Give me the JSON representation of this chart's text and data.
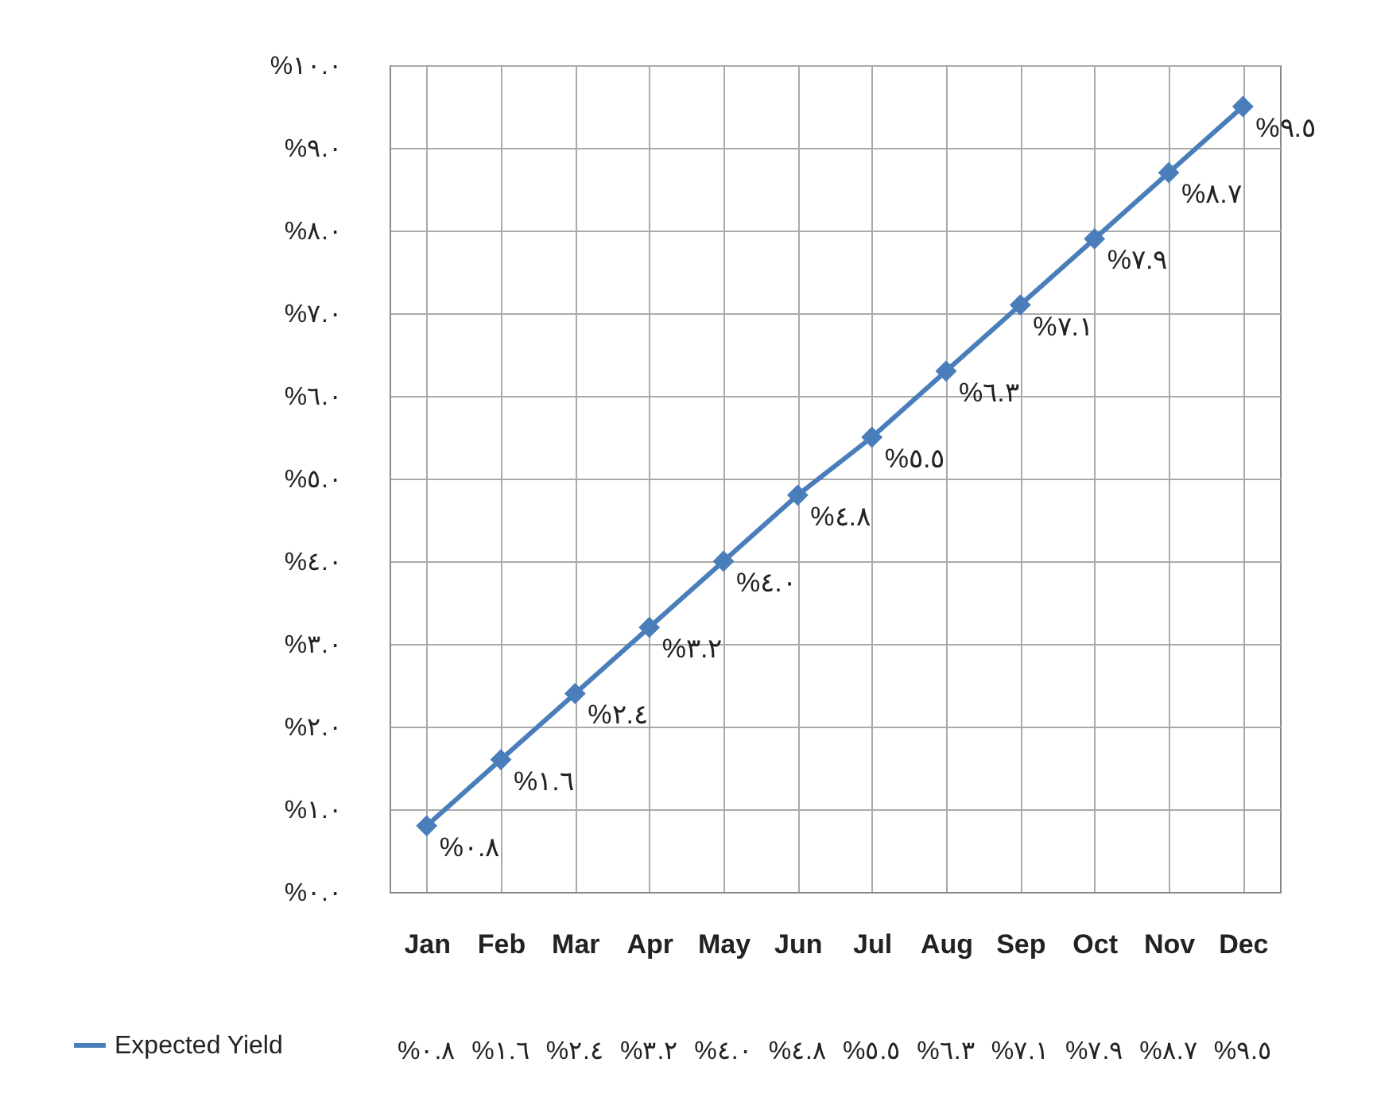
{
  "chart_data": {
    "type": "line",
    "categories": [
      "Jan",
      "Feb",
      "Mar",
      "Apr",
      "May",
      "Jun",
      "Jul",
      "Aug",
      "Sep",
      "Oct",
      "Nov",
      "Dec"
    ],
    "series": [
      {
        "name": "Expected Yield",
        "color": "#4a7ebb",
        "values": [
          0.8,
          1.6,
          2.4,
          3.2,
          4.0,
          4.8,
          5.5,
          6.3,
          7.1,
          7.9,
          8.7,
          9.5
        ],
        "value_labels": [
          "%٠.٨",
          "%١.٦",
          "%٢.٤",
          "%٣.٢",
          "%٤.٠",
          "%٤.٨",
          "%٥.٥",
          "%٦.٣",
          "%٧.١",
          "%٧.٩",
          "%٨.٧",
          "%٩.٥"
        ]
      }
    ],
    "ylim": [
      0,
      10
    ],
    "yticks": [
      {
        "value": 0,
        "label": "%٠.٠"
      },
      {
        "value": 1,
        "label": "%١.٠"
      },
      {
        "value": 2,
        "label": "%٢.٠"
      },
      {
        "value": 3,
        "label": "%٣.٠"
      },
      {
        "value": 4,
        "label": "%٤.٠"
      },
      {
        "value": 5,
        "label": "%٥.٠"
      },
      {
        "value": 6,
        "label": "%٦.٠"
      },
      {
        "value": 7,
        "label": "%٧.٠"
      },
      {
        "value": 8,
        "label": "%٨.٠"
      },
      {
        "value": 9,
        "label": "%٩.٠"
      },
      {
        "value": 10,
        "label": "%١٠.٠"
      }
    ],
    "grid": true,
    "legend": "bottom",
    "marker": "diamond",
    "line_style": "solid"
  }
}
